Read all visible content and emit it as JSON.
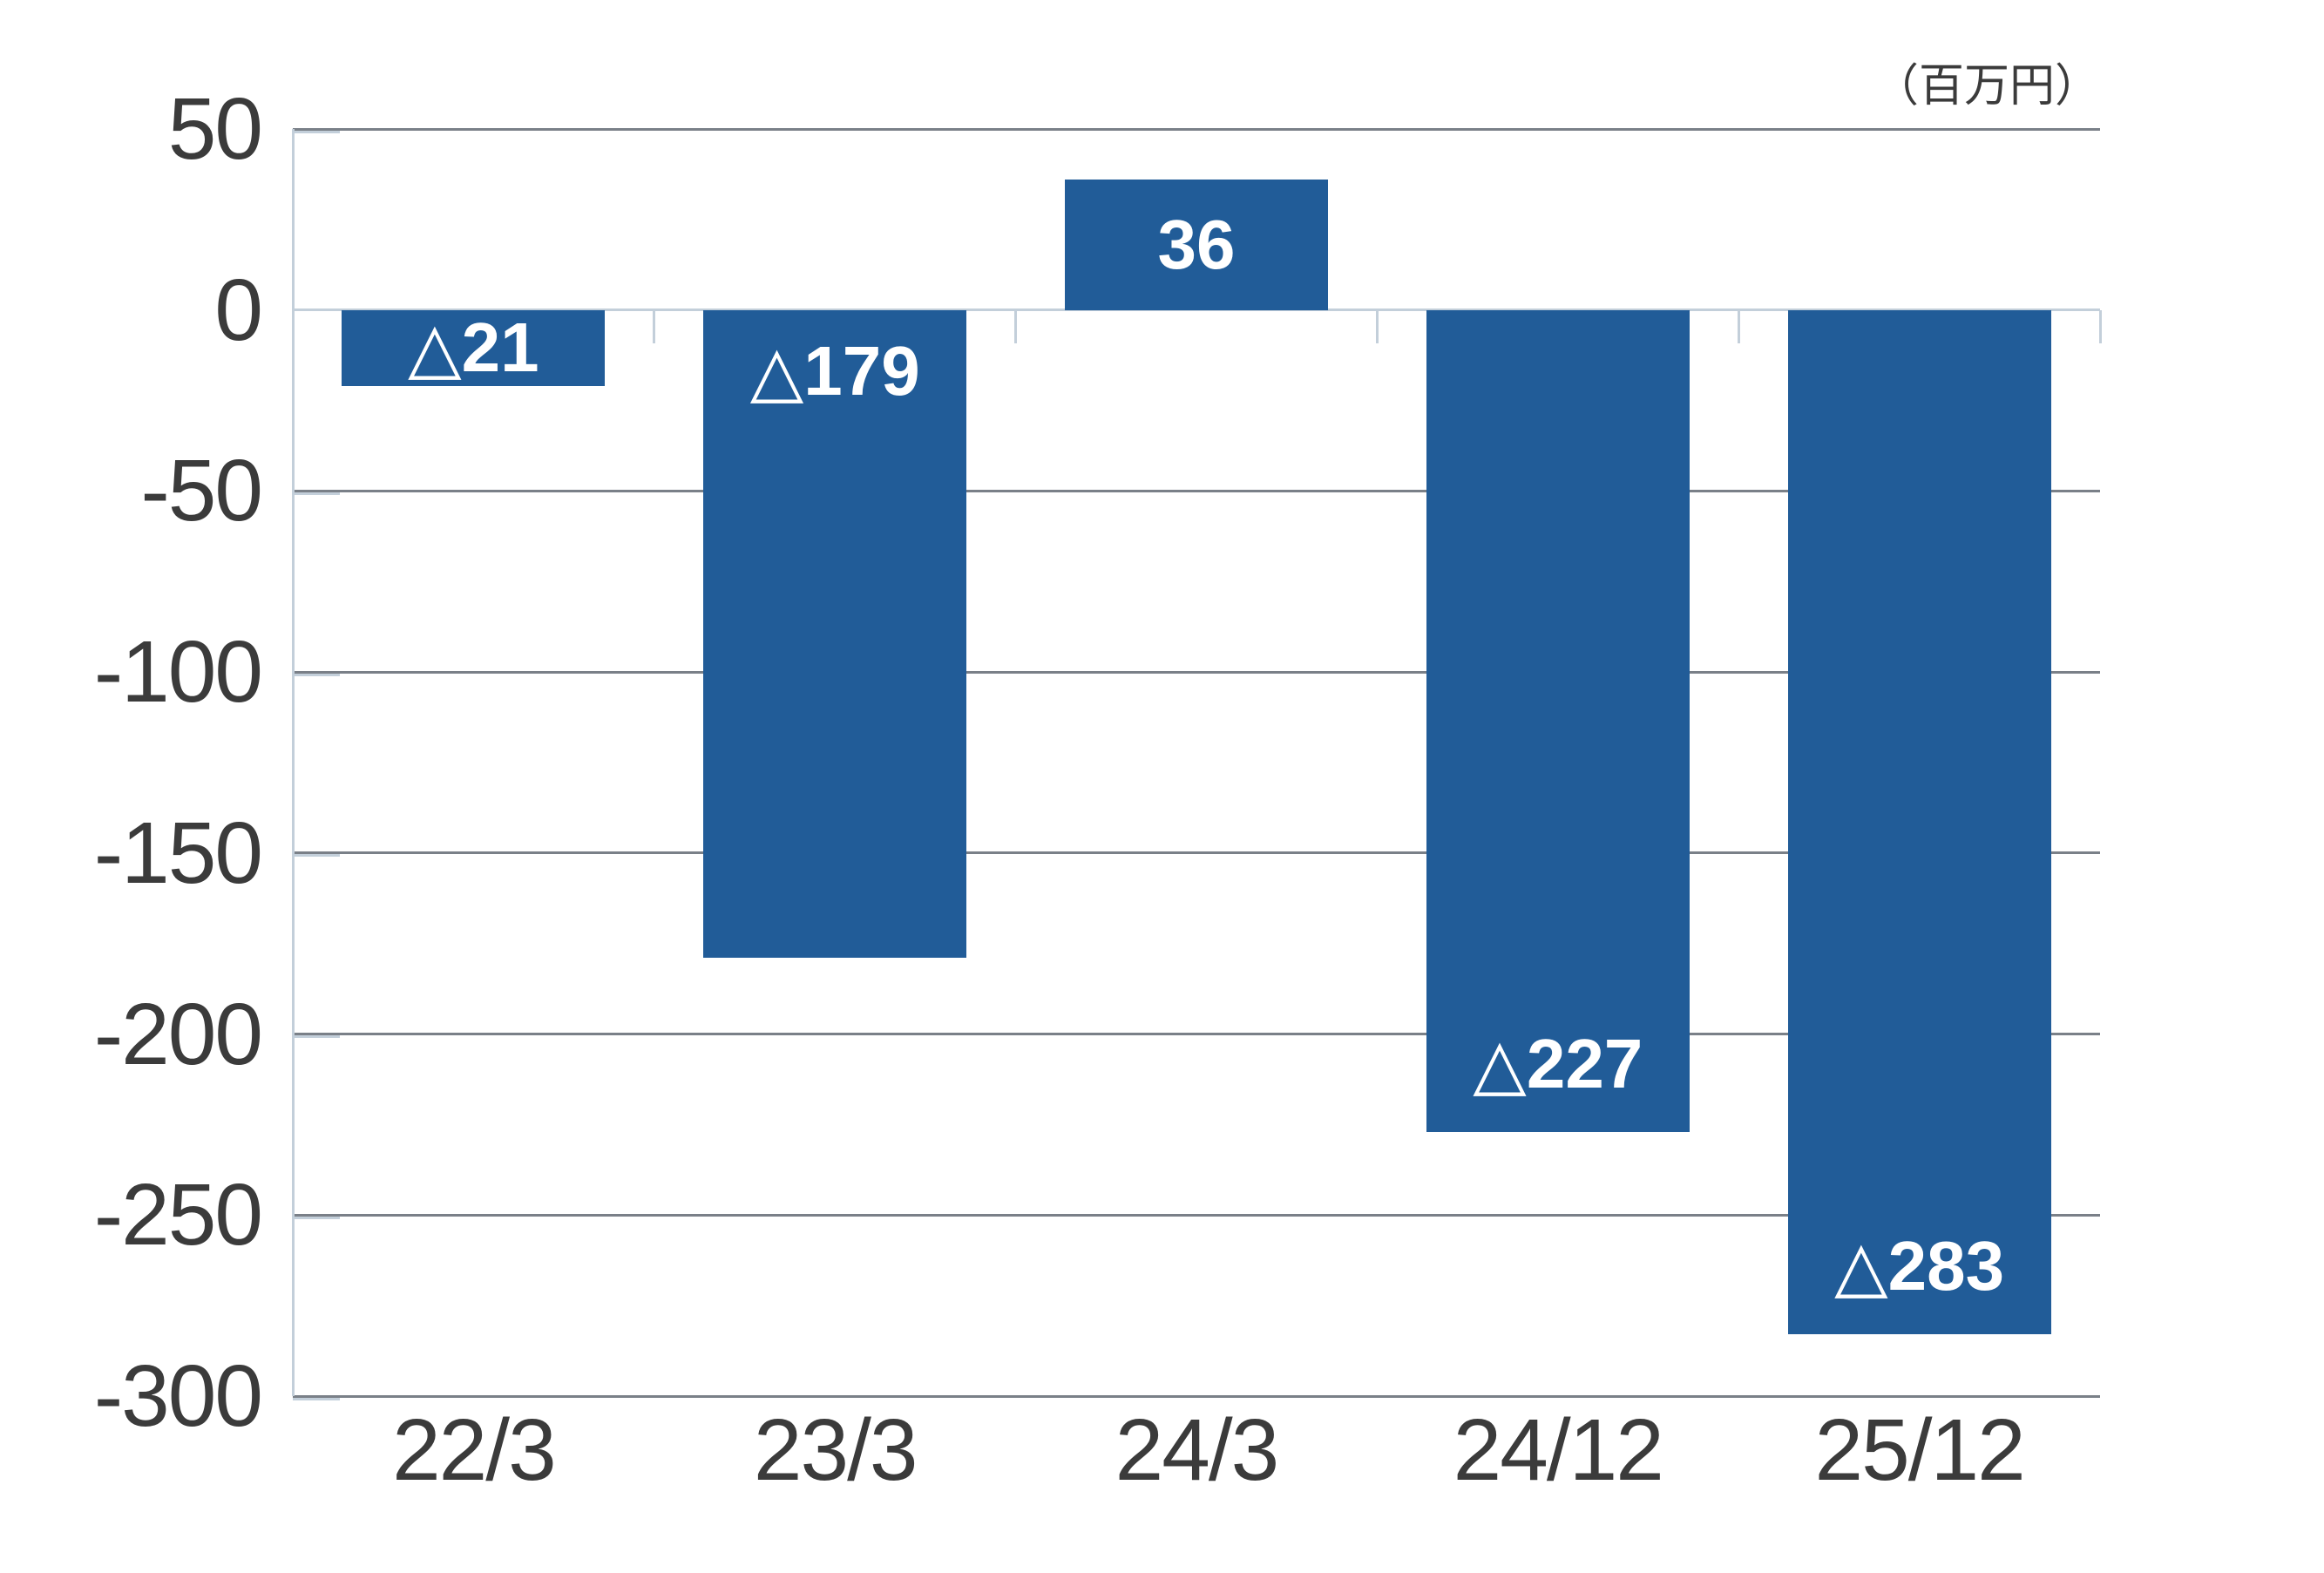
{
  "unit_label": "（百万円）",
  "chart_data": {
    "type": "bar",
    "title": "",
    "xlabel": "",
    "ylabel": "",
    "unit": "（百万円）",
    "categories": [
      "22/3",
      "23/3",
      "24/3",
      "24/12",
      "25/12"
    ],
    "values": [
      -21,
      -179,
      36,
      -227,
      -283
    ],
    "bar_labels": [
      "△21",
      "△179",
      "36",
      "△227",
      "△283"
    ],
    "bar_label_positions": [
      "center",
      "inside-top",
      "center",
      "inside-bottom",
      "inside-bottom"
    ],
    "ylim": [
      -300,
      50
    ],
    "yticks": [
      50,
      0,
      -50,
      -100,
      -150,
      -200,
      -250,
      -300
    ],
    "grid": true,
    "legend": "none",
    "colors": {
      "bar": "#215c98",
      "bar_label_text": "#ffffff",
      "gridline": "#7a8088",
      "axis_line": "#c3cfda",
      "tick_label_text": "#3b3b3b"
    }
  }
}
